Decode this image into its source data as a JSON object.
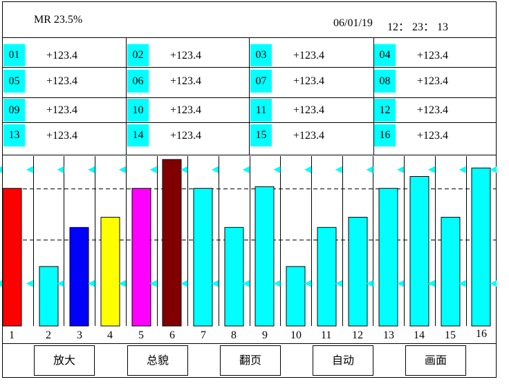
{
  "header": {
    "mr_label": "MR 23.5%",
    "date": "06/01/19",
    "time": "12： 23： 13"
  },
  "channels": [
    {
      "id": "01",
      "value": "+123.4"
    },
    {
      "id": "02",
      "value": "+123.4"
    },
    {
      "id": "03",
      "value": "+123.4"
    },
    {
      "id": "04",
      "value": "+123.4"
    },
    {
      "id": "05",
      "value": "+123.4"
    },
    {
      "id": "06",
      "value": "+123.4"
    },
    {
      "id": "07",
      "value": "+123.4"
    },
    {
      "id": "08",
      "value": "+123.4"
    },
    {
      "id": "09",
      "value": "+123.4"
    },
    {
      "id": "10",
      "value": "+123.4"
    },
    {
      "id": "11",
      "value": "+123.4"
    },
    {
      "id": "12",
      "value": "+123.4"
    },
    {
      "id": "13",
      "value": "+123.4"
    },
    {
      "id": "14",
      "value": "+123.4"
    },
    {
      "id": "15",
      "value": "+123.4"
    },
    {
      "id": "16",
      "value": "+123.4"
    }
  ],
  "colors": {
    "accent": "#00ffff",
    "bar_default": "#00ffff",
    "bar_1": "#ff0000",
    "bar_3": "#0000ff",
    "bar_4": "#ffff00",
    "bar_5": "#ff00ff",
    "bar_6": "#800000"
  },
  "chart_data": {
    "type": "bar",
    "categories": [
      "1",
      "2",
      "3",
      "4",
      "5",
      "6",
      "7",
      "8",
      "9",
      "10",
      "11",
      "12",
      "13",
      "14",
      "15",
      "16"
    ],
    "values": [
      0.81,
      0.35,
      0.58,
      0.64,
      0.81,
      0.98,
      0.81,
      0.58,
      0.82,
      0.35,
      0.58,
      0.64,
      0.81,
      0.88,
      0.64,
      0.93
    ],
    "bar_colors": [
      "#ff0000",
      "#00ffff",
      "#0000ff",
      "#ffff00",
      "#ff00ff",
      "#800000",
      "#00ffff",
      "#00ffff",
      "#00ffff",
      "#00ffff",
      "#00ffff",
      "#00ffff",
      "#00ffff",
      "#00ffff",
      "#00ffff",
      "#00ffff"
    ],
    "ylim": [
      0,
      1
    ],
    "upper_limit": 0.92,
    "lower_limit": 0.25,
    "dashed_lines": [
      0.81,
      0.51
    ],
    "grid": "vertical"
  },
  "buttons": [
    {
      "label": "放大"
    },
    {
      "label": "总貌"
    },
    {
      "label": "翻页"
    },
    {
      "label": "自动"
    },
    {
      "label": "画面"
    }
  ]
}
